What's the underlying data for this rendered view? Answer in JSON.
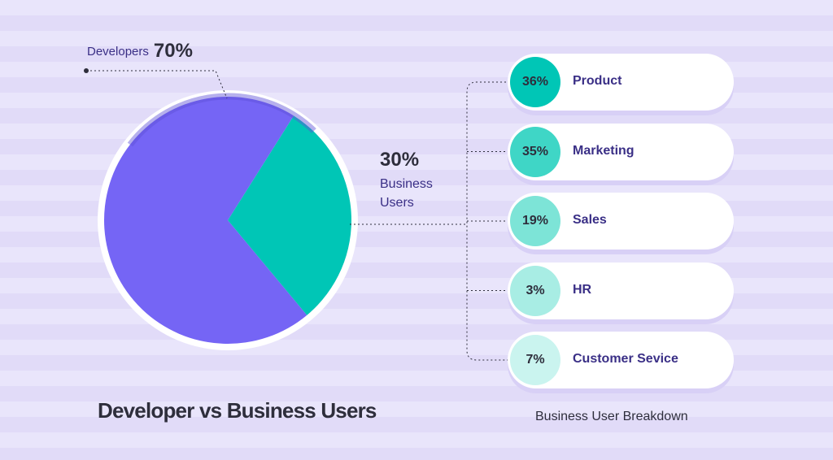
{
  "chart_data": [
    {
      "type": "pie",
      "title": "Developer vs Business Users",
      "slices": [
        {
          "label": "Developers",
          "value": 70,
          "display": "70%",
          "color": "#7565f5"
        },
        {
          "label": "Business Users",
          "value": 30,
          "display": "30%",
          "color": "#00c6b6"
        }
      ]
    },
    {
      "type": "bar",
      "title": "Business  User Breakdown",
      "categories": [
        "Product",
        "Marketing",
        "Sales",
        "HR",
        "Customer Sevice"
      ],
      "values": [
        36,
        35,
        19,
        3,
        7
      ],
      "display": [
        "36%",
        "35%",
        "19%",
        "3%",
        "7%"
      ],
      "colors": [
        "#00c6b6",
        "#3fd6c6",
        "#7de4d7",
        "#a8ede4",
        "#caf4ef"
      ]
    }
  ]
}
